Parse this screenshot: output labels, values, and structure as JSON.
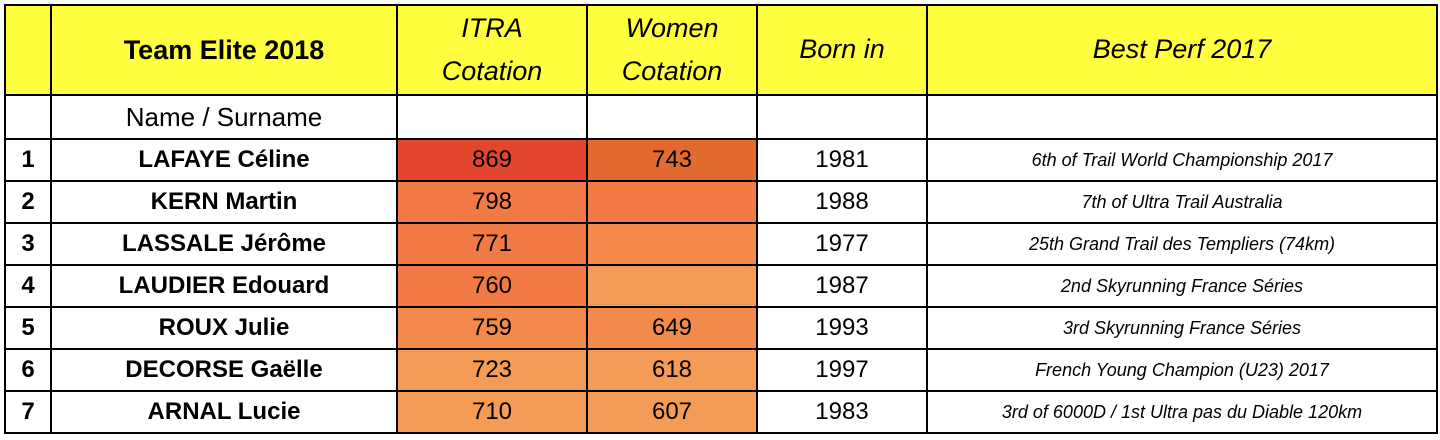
{
  "header": {
    "team": "Team Elite 2018",
    "itra_line1": "ITRA",
    "itra_line2": "Cotation",
    "women_line1": "Women",
    "women_line2": "Cotation",
    "born": "Born in",
    "perf": "Best Perf 2017"
  },
  "subheader": {
    "name_label": "Name / Surname"
  },
  "colors": {
    "header_bg": "#ffff3f",
    "heat_very_high": "#e2472d",
    "heat_high": "#e36a2e",
    "heat_mid": "#f17a45",
    "heat_low": "#f38a4b",
    "heat_lowest": "#f49b56"
  },
  "rows": [
    {
      "rank": "1",
      "name": "LAFAYE Céline",
      "itra": "869",
      "women": "743",
      "born": "1981",
      "perf": "6th of Trail World Championship 2017",
      "itra_color": "#e2472d",
      "women_color": "#e36a2e"
    },
    {
      "rank": "2",
      "name": "KERN Martin",
      "itra": "798",
      "women": "",
      "born": "1988",
      "perf": "7th of Ultra Trail Australia",
      "itra_color": "#f17a45",
      "women_color": "#f17a45"
    },
    {
      "rank": "3",
      "name": "LASSALE Jérôme",
      "itra": "771",
      "women": "",
      "born": "1977",
      "perf": "25th Grand Trail des Templiers (74km)",
      "itra_color": "#f17a45",
      "women_color": "#f38a4b"
    },
    {
      "rank": "4",
      "name": "LAUDIER Edouard",
      "itra": "760",
      "women": "",
      "born": "1987",
      "perf": "2nd Skyrunning France Séries",
      "itra_color": "#f17a45",
      "women_color": "#f49b56"
    },
    {
      "rank": "5",
      "name": "ROUX Julie",
      "itra": "759",
      "women": "649",
      "born": "1993",
      "perf": "3rd Skyrunning France Séries",
      "itra_color": "#f38a4b",
      "women_color": "#f38a4b"
    },
    {
      "rank": "6",
      "name": "DECORSE Gaëlle",
      "itra": "723",
      "women": "618",
      "born": "1997",
      "perf": "French Young Champion (U23) 2017",
      "itra_color": "#f49b56",
      "women_color": "#f49b56"
    },
    {
      "rank": "7",
      "name": "ARNAL Lucie",
      "itra": "710",
      "women": "607",
      "born": "1983",
      "perf": "3rd of 6000D / 1st Ultra pas du Diable 120km",
      "itra_color": "#f49b56",
      "women_color": "#f49b56"
    }
  ]
}
